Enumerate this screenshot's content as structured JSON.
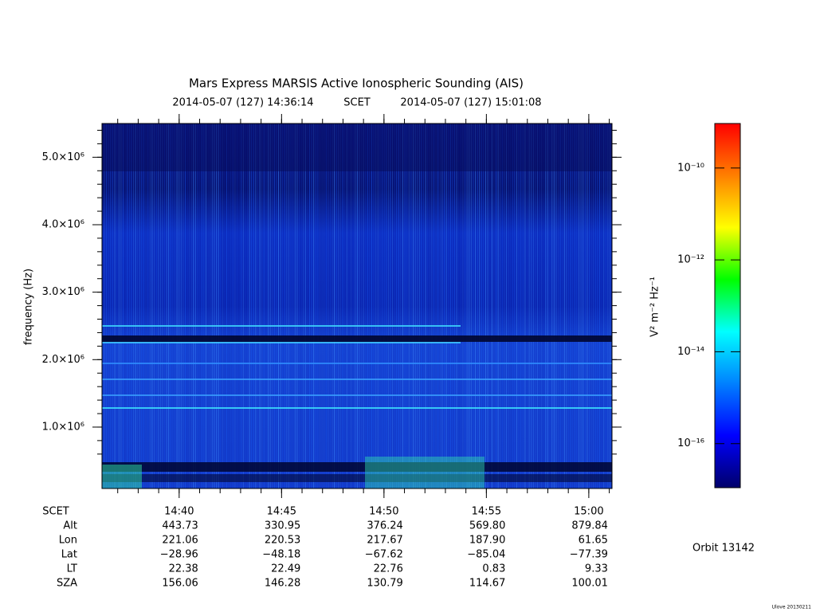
{
  "chart_data": {
    "type": "spectrogram",
    "title": "Mars Express MARSIS Active Ionospheric Sounding (AIS)",
    "start_time": "2014-05-07 (127) 14:36:14",
    "time_label": "SCET",
    "end_time": "2014-05-07 (127) 15:01:08",
    "y_label": "frequency (Hz)",
    "xlim": [
      876.233,
      901.133
    ],
    "xticks": [
      {
        "value": 880,
        "label": "14:40"
      },
      {
        "value": 885,
        "label": "14:45"
      },
      {
        "value": 890,
        "label": "14:50"
      },
      {
        "value": 895,
        "label": "14:55"
      },
      {
        "value": 900,
        "label": "15:00"
      }
    ],
    "ylim": [
      90000,
      5500000
    ],
    "yticks": [
      {
        "value": 1000000,
        "label": "1.0×10⁶"
      },
      {
        "value": 2000000,
        "label": "2.0×10⁶"
      },
      {
        "value": 3000000,
        "label": "3.0×10⁶"
      },
      {
        "value": 4000000,
        "label": "4.0×10⁶"
      },
      {
        "value": 5000000,
        "label": "5.0×10⁶"
      }
    ],
    "colorbar": {
      "label": "V² m⁻² Hz⁻¹",
      "log": true,
      "clim": [
        1.1e-17,
        9.3e-10
      ],
      "ticks": [
        {
          "value": 1e-16,
          "label": "10⁻¹⁶"
        },
        {
          "value": 1e-14,
          "label": "10⁻¹⁴"
        },
        {
          "value": 1e-12,
          "label": "10⁻¹²"
        },
        {
          "value": 1e-10,
          "label": "10⁻¹⁰"
        }
      ],
      "colors": [
        "#00006a",
        "#0000ff",
        "#0080ff",
        "#00ffff",
        "#00ff00",
        "#ffff00",
        "#ff8000",
        "#ff0000"
      ]
    },
    "ephemeris": {
      "time_row": "SCET",
      "rows": [
        {
          "name": "Alt",
          "values": [
            "443.73",
            "330.95",
            "376.24",
            "569.80",
            "879.84"
          ]
        },
        {
          "name": "Lon",
          "values": [
            "221.06",
            "220.53",
            "217.67",
            "187.90",
            "61.65"
          ]
        },
        {
          "name": "Lat",
          "values": [
            "−28.96",
            "−48.18",
            "−67.62",
            "−85.04",
            "−77.39"
          ]
        },
        {
          "name": "LT",
          "values": [
            "22.38",
            "22.49",
            "22.76",
            "0.83",
            "9.33"
          ]
        },
        {
          "name": "SZA",
          "values": [
            "156.06",
            "146.28",
            "130.79",
            "114.67",
            "100.01"
          ]
        }
      ]
    },
    "orbit": "Orbit 13142"
  },
  "footer": "Ulove 20130211"
}
